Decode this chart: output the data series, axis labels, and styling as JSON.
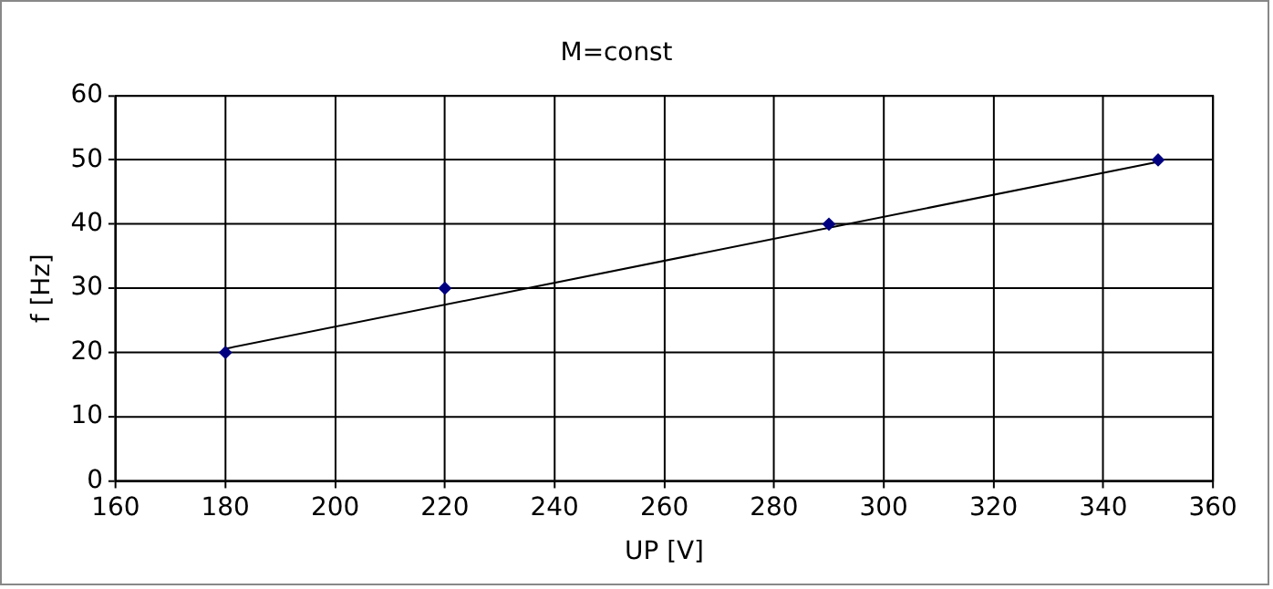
{
  "chart_data": {
    "type": "scatter",
    "title": "M=const",
    "xlabel": "UP [V]",
    "ylabel": "f [Hz]",
    "xlim": [
      160,
      360
    ],
    "xticks": [
      160,
      180,
      200,
      220,
      240,
      260,
      280,
      300,
      320,
      340,
      360
    ],
    "ylim": [
      0,
      60
    ],
    "yticks": [
      0,
      10,
      20,
      30,
      40,
      50,
      60
    ],
    "grid": true,
    "marker": "diamond",
    "series": [
      {
        "color": "#000080",
        "x": [
          180,
          220,
          290,
          350
        ],
        "values": [
          20,
          30,
          40,
          50
        ]
      },
      {
        "type": "line",
        "color": "#000000",
        "marker": "none",
        "x": [
          180,
          350
        ],
        "values": [
          20.6,
          49.7
        ]
      }
    ]
  }
}
